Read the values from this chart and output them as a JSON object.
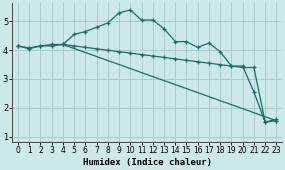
{
  "xlabel": "Humidex (Indice chaleur)",
  "bg_color": "#cce8e8",
  "grid_color": "#aacccc",
  "line_color": "#1a6e6a",
  "xlim": [
    -0.5,
    23.5
  ],
  "ylim": [
    0.8,
    5.65
  ],
  "xticks": [
    0,
    1,
    2,
    3,
    4,
    5,
    6,
    7,
    8,
    9,
    10,
    11,
    12,
    13,
    14,
    15,
    16,
    17,
    18,
    19,
    20,
    21,
    22,
    23
  ],
  "yticks": [
    1,
    2,
    3,
    4,
    5
  ],
  "line1_x": [
    0,
    1,
    2,
    3,
    4,
    5,
    6,
    7,
    8,
    9,
    10,
    11,
    12,
    13,
    14,
    15,
    16,
    17,
    18,
    19,
    20,
    21,
    22,
    23
  ],
  "line1_y": [
    4.15,
    4.05,
    4.15,
    4.15,
    4.2,
    4.55,
    4.65,
    4.8,
    4.95,
    5.3,
    5.4,
    5.05,
    5.05,
    4.75,
    4.3,
    4.3,
    4.1,
    4.25,
    3.95,
    3.45,
    3.45,
    2.55,
    1.5,
    1.55
  ],
  "line2_x": [
    0,
    1,
    2,
    3,
    4,
    5,
    6,
    7,
    8,
    9,
    10,
    11,
    12,
    13,
    14,
    15,
    16,
    17,
    18,
    19,
    20,
    21,
    22,
    23
  ],
  "line2_y": [
    4.15,
    4.08,
    4.15,
    4.2,
    4.2,
    4.15,
    4.1,
    4.05,
    4.0,
    3.95,
    3.9,
    3.85,
    3.8,
    3.75,
    3.7,
    3.65,
    3.6,
    3.55,
    3.5,
    3.45,
    3.4,
    3.4,
    1.5,
    1.6
  ],
  "line3_x": [
    4,
    23
  ],
  "line3_y": [
    4.2,
    1.55
  ],
  "marker_size": 3.5,
  "linewidth": 0.9
}
